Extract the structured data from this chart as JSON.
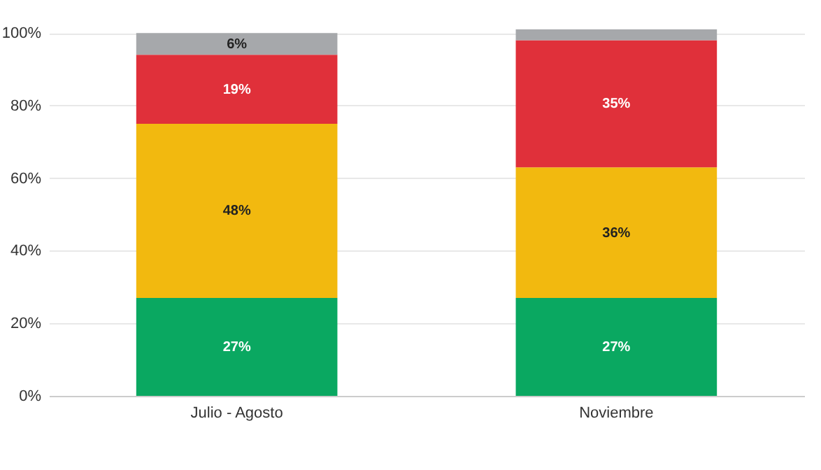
{
  "chart_data": {
    "type": "bar",
    "stacked": true,
    "categories": [
      "Julio - Agosto",
      "Noviembre"
    ],
    "series": [
      {
        "color": "#0aa861",
        "values": [
          27,
          27
        ],
        "value_labels": [
          "27%",
          "27%"
        ]
      },
      {
        "color": "#f2b90f",
        "values": [
          48,
          36
        ],
        "value_labels": [
          "48%",
          "36%"
        ]
      },
      {
        "color": "#e0303a",
        "values": [
          19,
          35
        ],
        "value_labels": [
          "19%",
          "35%"
        ]
      },
      {
        "color": "#a6a8ab",
        "values": [
          6,
          3
        ],
        "value_labels": [
          "6%",
          null
        ]
      }
    ],
    "ylim": [
      0,
      101
    ],
    "yticks": [
      {
        "value": 0,
        "label": "0%"
      },
      {
        "value": 20,
        "label": "20%"
      },
      {
        "value": 40,
        "label": "40%"
      },
      {
        "value": 60,
        "label": "60%"
      },
      {
        "value": 80,
        "label": "80%"
      },
      {
        "value": 100,
        "label": "100%"
      }
    ],
    "grid": "y"
  }
}
